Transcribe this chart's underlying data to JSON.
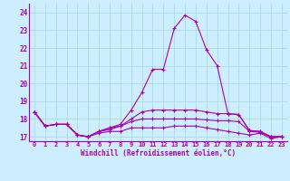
{
  "xlabel": "Windchill (Refroidissement éolien,°C)",
  "background_color": "#cceeff",
  "grid_color": "#aadddd",
  "line_color": "#aa00aa",
  "xlim": [
    -0.5,
    23.5
  ],
  "ylim": [
    16.75,
    24.5
  ],
  "xticks": [
    0,
    1,
    2,
    3,
    4,
    5,
    6,
    7,
    8,
    9,
    10,
    11,
    12,
    13,
    14,
    15,
    16,
    17,
    18,
    19,
    20,
    21,
    22,
    23
  ],
  "yticks": [
    17,
    18,
    19,
    20,
    21,
    22,
    23,
    24
  ],
  "curves": [
    [
      18.4,
      17.6,
      17.7,
      17.7,
      17.1,
      17.0,
      17.2,
      17.3,
      17.3,
      17.5,
      17.5,
      17.5,
      17.5,
      17.6,
      17.6,
      17.6,
      17.5,
      17.4,
      17.3,
      17.2,
      17.1,
      17.2,
      16.9,
      17.0
    ],
    [
      18.4,
      17.6,
      17.7,
      17.7,
      17.1,
      17.0,
      17.3,
      17.4,
      17.6,
      17.85,
      18.0,
      18.0,
      18.0,
      18.0,
      18.0,
      18.0,
      17.95,
      17.9,
      17.9,
      17.85,
      17.3,
      17.25,
      17.0,
      17.0
    ],
    [
      18.4,
      17.6,
      17.7,
      17.7,
      17.1,
      17.0,
      17.3,
      17.5,
      17.6,
      18.0,
      18.4,
      18.5,
      18.5,
      18.5,
      18.5,
      18.5,
      18.4,
      18.3,
      18.3,
      18.25,
      17.35,
      17.3,
      17.0,
      17.0
    ],
    [
      18.4,
      17.6,
      17.7,
      17.7,
      17.1,
      17.0,
      17.3,
      17.5,
      17.7,
      18.5,
      19.5,
      20.8,
      20.8,
      23.1,
      23.85,
      23.5,
      21.9,
      21.0,
      18.3,
      18.25,
      17.35,
      17.3,
      17.0,
      17.0
    ]
  ]
}
